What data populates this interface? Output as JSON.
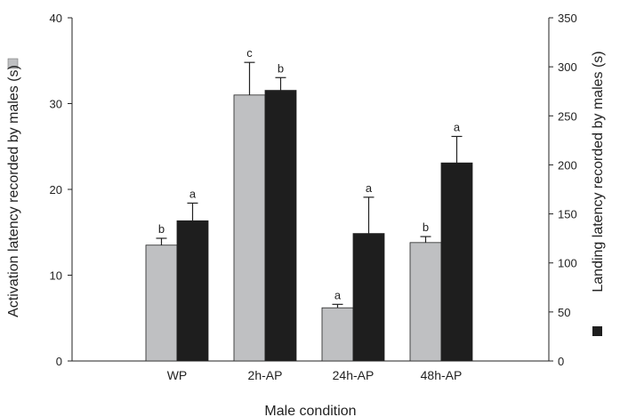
{
  "chart_data": {
    "type": "bar",
    "xlabel": "Male condition",
    "categories": [
      "WP",
      "2h-AP",
      "24h-AP",
      "48h-AP"
    ],
    "y_left": {
      "label": "Activation latency recorded by males (s)",
      "lim": [
        0,
        40
      ],
      "ticks": [
        0,
        10,
        20,
        30,
        40
      ]
    },
    "y_right": {
      "label": "Landing latency recorded by males (s)",
      "lim": [
        0,
        350
      ],
      "ticks": [
        0,
        50,
        100,
        150,
        200,
        250,
        300,
        350
      ]
    },
    "series": [
      {
        "axis": "left",
        "color": "#bfc0c2",
        "values": [
          13.5,
          31.0,
          6.2,
          13.8
        ],
        "errors": [
          0.8,
          3.8,
          0.4,
          0.7
        ],
        "labels": [
          "b",
          "c",
          "a",
          "b"
        ]
      },
      {
        "axis": "right",
        "color": "#1e1e1e",
        "values": [
          143,
          276,
          130,
          202
        ],
        "errors": [
          18,
          13,
          37,
          27
        ],
        "labels": [
          "a",
          "b",
          "a",
          "a"
        ]
      }
    ],
    "legend_markers": {
      "left": "#bfc0c2",
      "right": "#1e1e1e"
    },
    "grid": false
  }
}
